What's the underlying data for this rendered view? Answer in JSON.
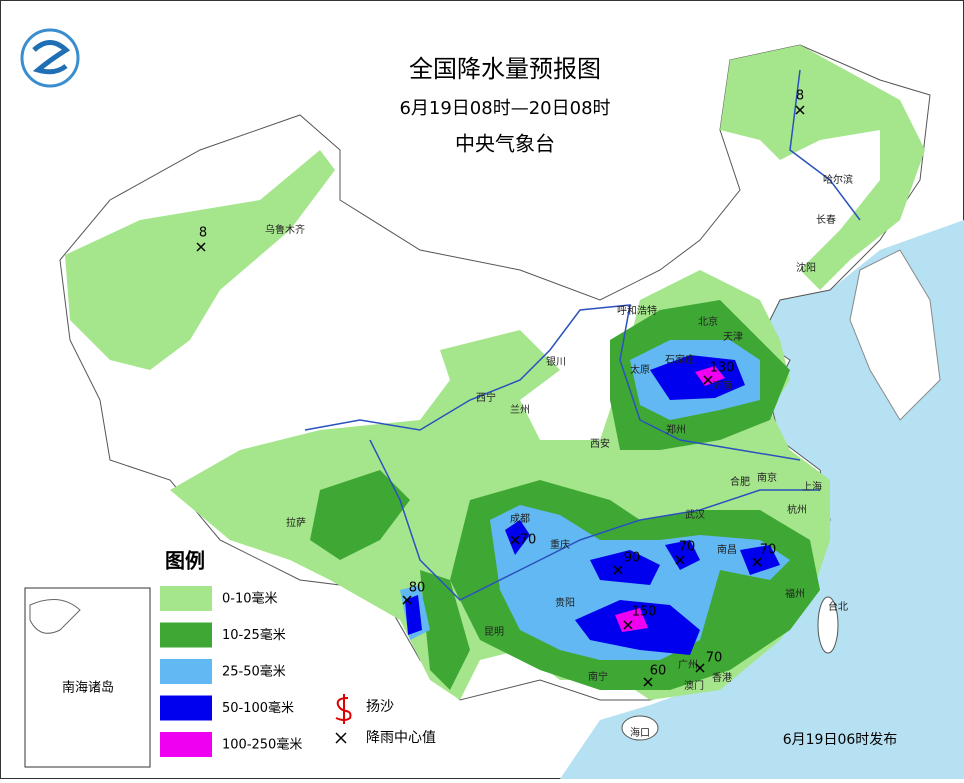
{
  "header": {
    "title": "全国降水量预报图",
    "period": "6月19日08时—20日08时",
    "issuer": "中央气象台"
  },
  "legend": {
    "title": "图例",
    "items": [
      {
        "label": "0-10毫米",
        "color": "#a5e68c"
      },
      {
        "label": "10-25毫米",
        "color": "#3fa834"
      },
      {
        "label": "25-50毫米",
        "color": "#62b8f2"
      },
      {
        "label": "50-100毫米",
        "color": "#0000ee"
      },
      {
        "label": "100-250毫米",
        "color": "#f000f0"
      }
    ],
    "symbols": [
      {
        "label": "扬沙"
      },
      {
        "label": "降雨中心值"
      }
    ]
  },
  "cities": [
    {
      "name": "乌鲁木齐"
    },
    {
      "name": "哈尔滨"
    },
    {
      "name": "长春"
    },
    {
      "name": "沈阳"
    },
    {
      "name": "呼和浩特"
    },
    {
      "name": "北京"
    },
    {
      "name": "天津"
    },
    {
      "name": "石家庄"
    },
    {
      "name": "太原"
    },
    {
      "name": "济南"
    },
    {
      "name": "银川"
    },
    {
      "name": "西宁"
    },
    {
      "name": "兰州"
    },
    {
      "name": "西安"
    },
    {
      "name": "郑州"
    },
    {
      "name": "合肥"
    },
    {
      "name": "南京"
    },
    {
      "name": "上海"
    },
    {
      "name": "杭州"
    },
    {
      "name": "武汉"
    },
    {
      "name": "成都"
    },
    {
      "name": "重庆"
    },
    {
      "name": "南昌"
    },
    {
      "name": "拉萨"
    },
    {
      "name": "贵阳"
    },
    {
      "name": "福州"
    },
    {
      "name": "台北"
    },
    {
      "name": "昆明"
    },
    {
      "name": "南宁"
    },
    {
      "name": "广州"
    },
    {
      "name": "澳门"
    },
    {
      "name": "香港"
    },
    {
      "name": "海口"
    }
  ],
  "rain_centers": [
    {
      "value": 8
    },
    {
      "value": 8
    },
    {
      "value": 130
    },
    {
      "value": 70
    },
    {
      "value": 90
    },
    {
      "value": 70
    },
    {
      "value": 70
    },
    {
      "value": 80
    },
    {
      "value": 150
    },
    {
      "value": 60
    },
    {
      "value": 70
    }
  ],
  "inset": {
    "label": "南海诸岛"
  },
  "footer": {
    "issued": "6月19日06时发布"
  }
}
